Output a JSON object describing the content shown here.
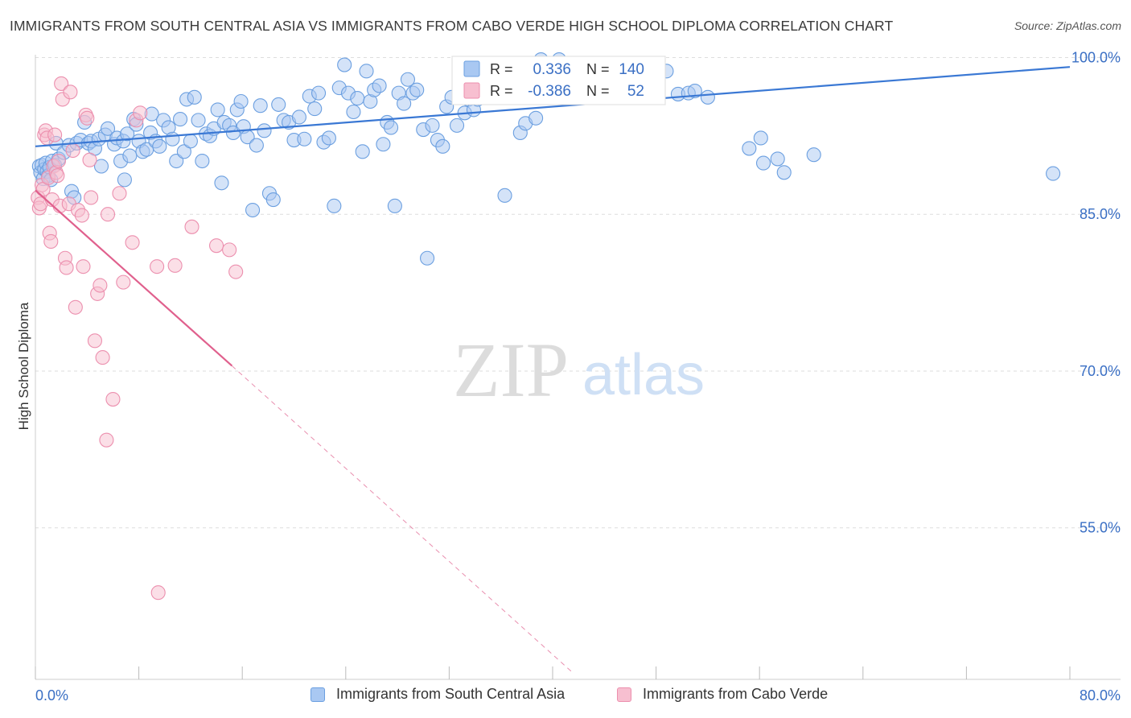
{
  "title": "IMMIGRANTS FROM SOUTH CENTRAL ASIA VS IMMIGRANTS FROM CABO VERDE HIGH SCHOOL DIPLOMA CORRELATION CHART",
  "source": "Source: ZipAtlas.com",
  "watermark": {
    "zip": "ZIP",
    "atlas": "atlas"
  },
  "colors": {
    "blue_fill": "#a9c8f2",
    "blue_stroke": "#6b9fe0",
    "blue_line": "#3a78d4",
    "pink_fill": "#f7bfd0",
    "pink_stroke": "#ec8fae",
    "pink_line": "#e0608d",
    "axis_label": "#3a6fc4",
    "grid": "#dddddd"
  },
  "legend_top": {
    "rows": [
      {
        "r_label": "R =",
        "r_value": "0.336",
        "n_label": "N =",
        "n_value": "140"
      },
      {
        "r_label": "R =",
        "r_value": "-0.386",
        "n_label": "N =",
        "n_value": "52"
      }
    ]
  },
  "legend_bottom": {
    "items": [
      "Immigrants from South Central Asia",
      "Immigrants from Cabo Verde"
    ]
  },
  "chart_data": {
    "type": "scatter",
    "ylabel": "High School Diploma",
    "x_tick_labels": {
      "left": "0.0%",
      "right": "80.0%"
    },
    "y_tick_labels": [
      "100.0%",
      "85.0%",
      "70.0%",
      "55.0%"
    ],
    "y_ticks": [
      100,
      85,
      70,
      55
    ],
    "xlim": [
      0,
      80
    ],
    "ylim": [
      40.5,
      101.5
    ],
    "grid": true,
    "series": [
      {
        "name": "Immigrants from South Central Asia",
        "color": "blue",
        "trend": {
          "x0": 0,
          "y0": 91.5,
          "x1": 80,
          "y1": 99.1
        },
        "points": [
          [
            0.3,
            89.6
          ],
          [
            0.4,
            89.0
          ],
          [
            0.5,
            89.7
          ],
          [
            0.6,
            88.4
          ],
          [
            0.7,
            89.3
          ],
          [
            0.8,
            89.9
          ],
          [
            0.9,
            89.1
          ],
          [
            1.0,
            88.7
          ],
          [
            1.1,
            89.5
          ],
          [
            1.2,
            88.3
          ],
          [
            1.3,
            90.1
          ],
          [
            1.5,
            89.7
          ],
          [
            1.6,
            91.8
          ],
          [
            1.8,
            90.3
          ],
          [
            2.2,
            90.9
          ],
          [
            2.6,
            91.6
          ],
          [
            2.8,
            87.2
          ],
          [
            3.0,
            86.6
          ],
          [
            3.2,
            91.8
          ],
          [
            3.5,
            92.1
          ],
          [
            3.8,
            93.8
          ],
          [
            4.1,
            91.8
          ],
          [
            4.3,
            92.0
          ],
          [
            4.6,
            91.3
          ],
          [
            4.9,
            92.2
          ],
          [
            5.1,
            89.6
          ],
          [
            5.4,
            92.6
          ],
          [
            5.6,
            93.2
          ],
          [
            6.1,
            91.7
          ],
          [
            6.3,
            92.3
          ],
          [
            6.6,
            90.1
          ],
          [
            6.8,
            92.0
          ],
          [
            6.9,
            88.3
          ],
          [
            7.1,
            92.7
          ],
          [
            7.3,
            90.6
          ],
          [
            7.6,
            94.1
          ],
          [
            7.8,
            93.6
          ],
          [
            8.0,
            92.0
          ],
          [
            8.3,
            91.0
          ],
          [
            8.6,
            91.2
          ],
          [
            8.9,
            92.8
          ],
          [
            9.0,
            94.6
          ],
          [
            9.3,
            92.0
          ],
          [
            9.6,
            91.5
          ],
          [
            9.9,
            94.0
          ],
          [
            10.3,
            93.3
          ],
          [
            10.6,
            92.2
          ],
          [
            10.9,
            90.1
          ],
          [
            11.2,
            94.1
          ],
          [
            11.5,
            91.0
          ],
          [
            11.7,
            96.0
          ],
          [
            12.0,
            92.0
          ],
          [
            12.3,
            96.2
          ],
          [
            12.6,
            94.0
          ],
          [
            12.9,
            90.1
          ],
          [
            13.2,
            92.7
          ],
          [
            13.5,
            92.5
          ],
          [
            13.8,
            93.2
          ],
          [
            14.1,
            95.0
          ],
          [
            14.4,
            88.0
          ],
          [
            14.6,
            93.8
          ],
          [
            15.0,
            93.5
          ],
          [
            15.3,
            92.8
          ],
          [
            15.6,
            95.0
          ],
          [
            15.9,
            95.8
          ],
          [
            16.1,
            93.4
          ],
          [
            16.4,
            92.4
          ],
          [
            16.8,
            85.4
          ],
          [
            17.1,
            91.6
          ],
          [
            17.4,
            95.4
          ],
          [
            17.7,
            93.0
          ],
          [
            18.1,
            87.0
          ],
          [
            18.4,
            86.4
          ],
          [
            18.8,
            95.5
          ],
          [
            19.2,
            94.0
          ],
          [
            19.6,
            93.8
          ],
          [
            20.0,
            92.1
          ],
          [
            20.4,
            94.3
          ],
          [
            20.8,
            92.2
          ],
          [
            21.2,
            96.3
          ],
          [
            21.6,
            95.1
          ],
          [
            21.9,
            96.6
          ],
          [
            22.3,
            91.9
          ],
          [
            22.7,
            92.3
          ],
          [
            23.1,
            85.8
          ],
          [
            23.5,
            97.1
          ],
          [
            23.9,
            99.3
          ],
          [
            24.2,
            96.6
          ],
          [
            24.6,
            94.8
          ],
          [
            24.9,
            96.1
          ],
          [
            25.3,
            91.0
          ],
          [
            25.6,
            98.7
          ],
          [
            25.9,
            95.8
          ],
          [
            26.2,
            96.9
          ],
          [
            26.6,
            97.3
          ],
          [
            26.9,
            91.7
          ],
          [
            27.2,
            93.8
          ],
          [
            27.5,
            93.3
          ],
          [
            27.8,
            85.8
          ],
          [
            28.1,
            96.6
          ],
          [
            28.5,
            95.6
          ],
          [
            28.8,
            97.9
          ],
          [
            29.2,
            96.6
          ],
          [
            29.5,
            96.9
          ],
          [
            30.0,
            93.1
          ],
          [
            30.3,
            80.8
          ],
          [
            30.7,
            93.5
          ],
          [
            31.1,
            92.1
          ],
          [
            31.5,
            91.5
          ],
          [
            31.8,
            95.3
          ],
          [
            32.2,
            96.2
          ],
          [
            32.6,
            93.5
          ],
          [
            32.8,
            98.0
          ],
          [
            33.2,
            94.7
          ],
          [
            33.5,
            96.0
          ],
          [
            33.9,
            95.0
          ],
          [
            34.2,
            96.0
          ],
          [
            34.6,
            97.6
          ],
          [
            36.0,
            98.2
          ],
          [
            36.3,
            86.8
          ],
          [
            37.2,
            98.0
          ],
          [
            37.5,
            92.8
          ],
          [
            37.9,
            93.7
          ],
          [
            38.3,
            96.9
          ],
          [
            38.7,
            94.2
          ],
          [
            39.1,
            99.8
          ],
          [
            40.5,
            99.8
          ],
          [
            41.5,
            96.9
          ],
          [
            43.3,
            96.8
          ],
          [
            48.8,
            98.7
          ],
          [
            49.7,
            96.5
          ],
          [
            50.5,
            96.6
          ],
          [
            51.0,
            96.8
          ],
          [
            52.0,
            96.2
          ],
          [
            55.2,
            91.3
          ],
          [
            56.1,
            92.3
          ],
          [
            56.3,
            89.9
          ],
          [
            57.4,
            90.3
          ],
          [
            57.9,
            89.0
          ],
          [
            60.2,
            90.7
          ],
          [
            78.7,
            88.9
          ]
        ]
      },
      {
        "name": "Immigrants from Cabo Verde",
        "color": "pink",
        "trend": {
          "x0": 0,
          "y0": 87.3,
          "x1": 15.2,
          "y1": 70.5
        },
        "trend_ext": {
          "x0": 15.2,
          "y0": 70.5,
          "x1": 41.5,
          "y1": 41.2
        },
        "points": [
          [
            0.2,
            86.6
          ],
          [
            0.3,
            85.6
          ],
          [
            0.4,
            86.0
          ],
          [
            0.5,
            87.8
          ],
          [
            0.6,
            87.4
          ],
          [
            0.7,
            92.6
          ],
          [
            0.8,
            93.0
          ],
          [
            0.9,
            92.3
          ],
          [
            1.0,
            88.5
          ],
          [
            1.1,
            83.2
          ],
          [
            1.2,
            82.4
          ],
          [
            1.3,
            86.4
          ],
          [
            1.4,
            89.6
          ],
          [
            1.5,
            92.6
          ],
          [
            1.6,
            89.0
          ],
          [
            1.7,
            88.7
          ],
          [
            1.8,
            90.1
          ],
          [
            1.9,
            85.8
          ],
          [
            2.0,
            97.5
          ],
          [
            2.1,
            96.0
          ],
          [
            2.3,
            80.8
          ],
          [
            2.4,
            79.9
          ],
          [
            2.6,
            86.0
          ],
          [
            2.7,
            96.7
          ],
          [
            2.9,
            91.1
          ],
          [
            3.1,
            76.1
          ],
          [
            3.3,
            85.4
          ],
          [
            3.6,
            84.9
          ],
          [
            3.7,
            80.0
          ],
          [
            3.9,
            94.5
          ],
          [
            4.0,
            94.2
          ],
          [
            4.2,
            90.2
          ],
          [
            4.3,
            86.6
          ],
          [
            4.6,
            72.9
          ],
          [
            4.8,
            77.4
          ],
          [
            5.0,
            78.2
          ],
          [
            5.2,
            71.3
          ],
          [
            5.5,
            63.4
          ],
          [
            5.6,
            85.0
          ],
          [
            6.0,
            67.3
          ],
          [
            6.5,
            87.0
          ],
          [
            6.8,
            78.5
          ],
          [
            7.5,
            82.3
          ],
          [
            7.8,
            94.0
          ],
          [
            8.1,
            94.7
          ],
          [
            9.4,
            80.0
          ],
          [
            9.5,
            48.8
          ],
          [
            10.8,
            80.1
          ],
          [
            12.1,
            83.8
          ],
          [
            14.0,
            82.0
          ],
          [
            15.0,
            81.6
          ],
          [
            15.5,
            79.5
          ]
        ]
      }
    ]
  }
}
